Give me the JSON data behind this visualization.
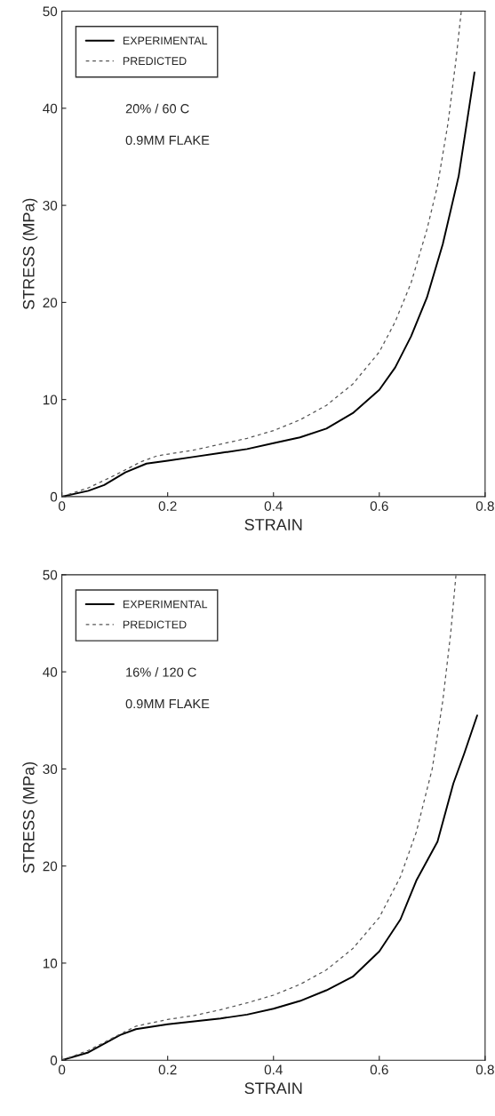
{
  "chart_data": [
    {
      "type": "line",
      "xlabel": "STRAIN",
      "ylabel": "STRESS (MPa)",
      "xlim": [
        0,
        0.8
      ],
      "ylim": [
        0,
        50
      ],
      "xticks": [
        0,
        0.2,
        0.4,
        0.6,
        0.8
      ],
      "yticks": [
        0,
        10,
        20,
        30,
        40,
        50
      ],
      "grid": false,
      "legend": "top left",
      "annotations": [
        "20% / 60 C",
        "0.9MM FLAKE"
      ],
      "series": [
        {
          "name": "EXPERIMENTAL",
          "color": "#000000",
          "line_style": "solid",
          "x": [
            0,
            0.05,
            0.08,
            0.12,
            0.16,
            0.2,
            0.25,
            0.3,
            0.35,
            0.4,
            0.45,
            0.5,
            0.55,
            0.6,
            0.63,
            0.66,
            0.69,
            0.72,
            0.75,
            0.78
          ],
          "values": [
            0,
            0.6,
            1.2,
            2.5,
            3.4,
            3.7,
            4.1,
            4.5,
            4.9,
            5.5,
            6.1,
            7.0,
            8.6,
            11.0,
            13.3,
            16.5,
            20.5,
            26,
            33,
            43.7
          ]
        },
        {
          "name": "PREDICTED",
          "color": "#555555",
          "line_style": "dashed",
          "x": [
            0,
            0.05,
            0.1,
            0.15,
            0.18,
            0.25,
            0.3,
            0.35,
            0.4,
            0.45,
            0.5,
            0.55,
            0.6,
            0.63,
            0.66,
            0.69,
            0.71,
            0.73,
            0.745,
            0.755
          ],
          "values": [
            0,
            0.9,
            2.2,
            3.6,
            4.2,
            4.8,
            5.4,
            6.0,
            6.8,
            7.9,
            9.4,
            11.6,
            14.9,
            18,
            22,
            27.5,
            32,
            38.5,
            45,
            50
          ]
        }
      ]
    },
    {
      "type": "line",
      "xlabel": "STRAIN",
      "ylabel": "STRESS (MPa)",
      "xlim": [
        0,
        0.8
      ],
      "ylim": [
        0,
        50
      ],
      "xticks": [
        0,
        0.2,
        0.4,
        0.6,
        0.8
      ],
      "yticks": [
        0,
        10,
        20,
        30,
        40,
        50
      ],
      "grid": false,
      "legend": "top left",
      "annotations": [
        "16% / 120 C",
        "0.9MM FLAKE"
      ],
      "series": [
        {
          "name": "EXPERIMENTAL",
          "color": "#000000",
          "line_style": "solid",
          "x": [
            0,
            0.05,
            0.08,
            0.11,
            0.14,
            0.2,
            0.25,
            0.3,
            0.35,
            0.4,
            0.45,
            0.5,
            0.55,
            0.6,
            0.64,
            0.67,
            0.71,
            0.74,
            0.76,
            0.785
          ],
          "values": [
            0,
            0.8,
            1.7,
            2.6,
            3.2,
            3.7,
            4.0,
            4.3,
            4.7,
            5.3,
            6.1,
            7.2,
            8.6,
            11.2,
            14.5,
            18.5,
            22.5,
            28.5,
            31.5,
            35.5
          ]
        },
        {
          "name": "PREDICTED",
          "color": "#555555",
          "line_style": "dashed",
          "x": [
            0,
            0.05,
            0.1,
            0.14,
            0.2,
            0.25,
            0.3,
            0.35,
            0.4,
            0.45,
            0.5,
            0.55,
            0.6,
            0.64,
            0.67,
            0.7,
            0.72,
            0.735,
            0.745
          ],
          "values": [
            0,
            1.0,
            2.4,
            3.5,
            4.2,
            4.6,
            5.2,
            5.9,
            6.7,
            7.8,
            9.3,
            11.5,
            14.7,
            18.9,
            23.5,
            30,
            37,
            44,
            50
          ]
        }
      ]
    }
  ]
}
